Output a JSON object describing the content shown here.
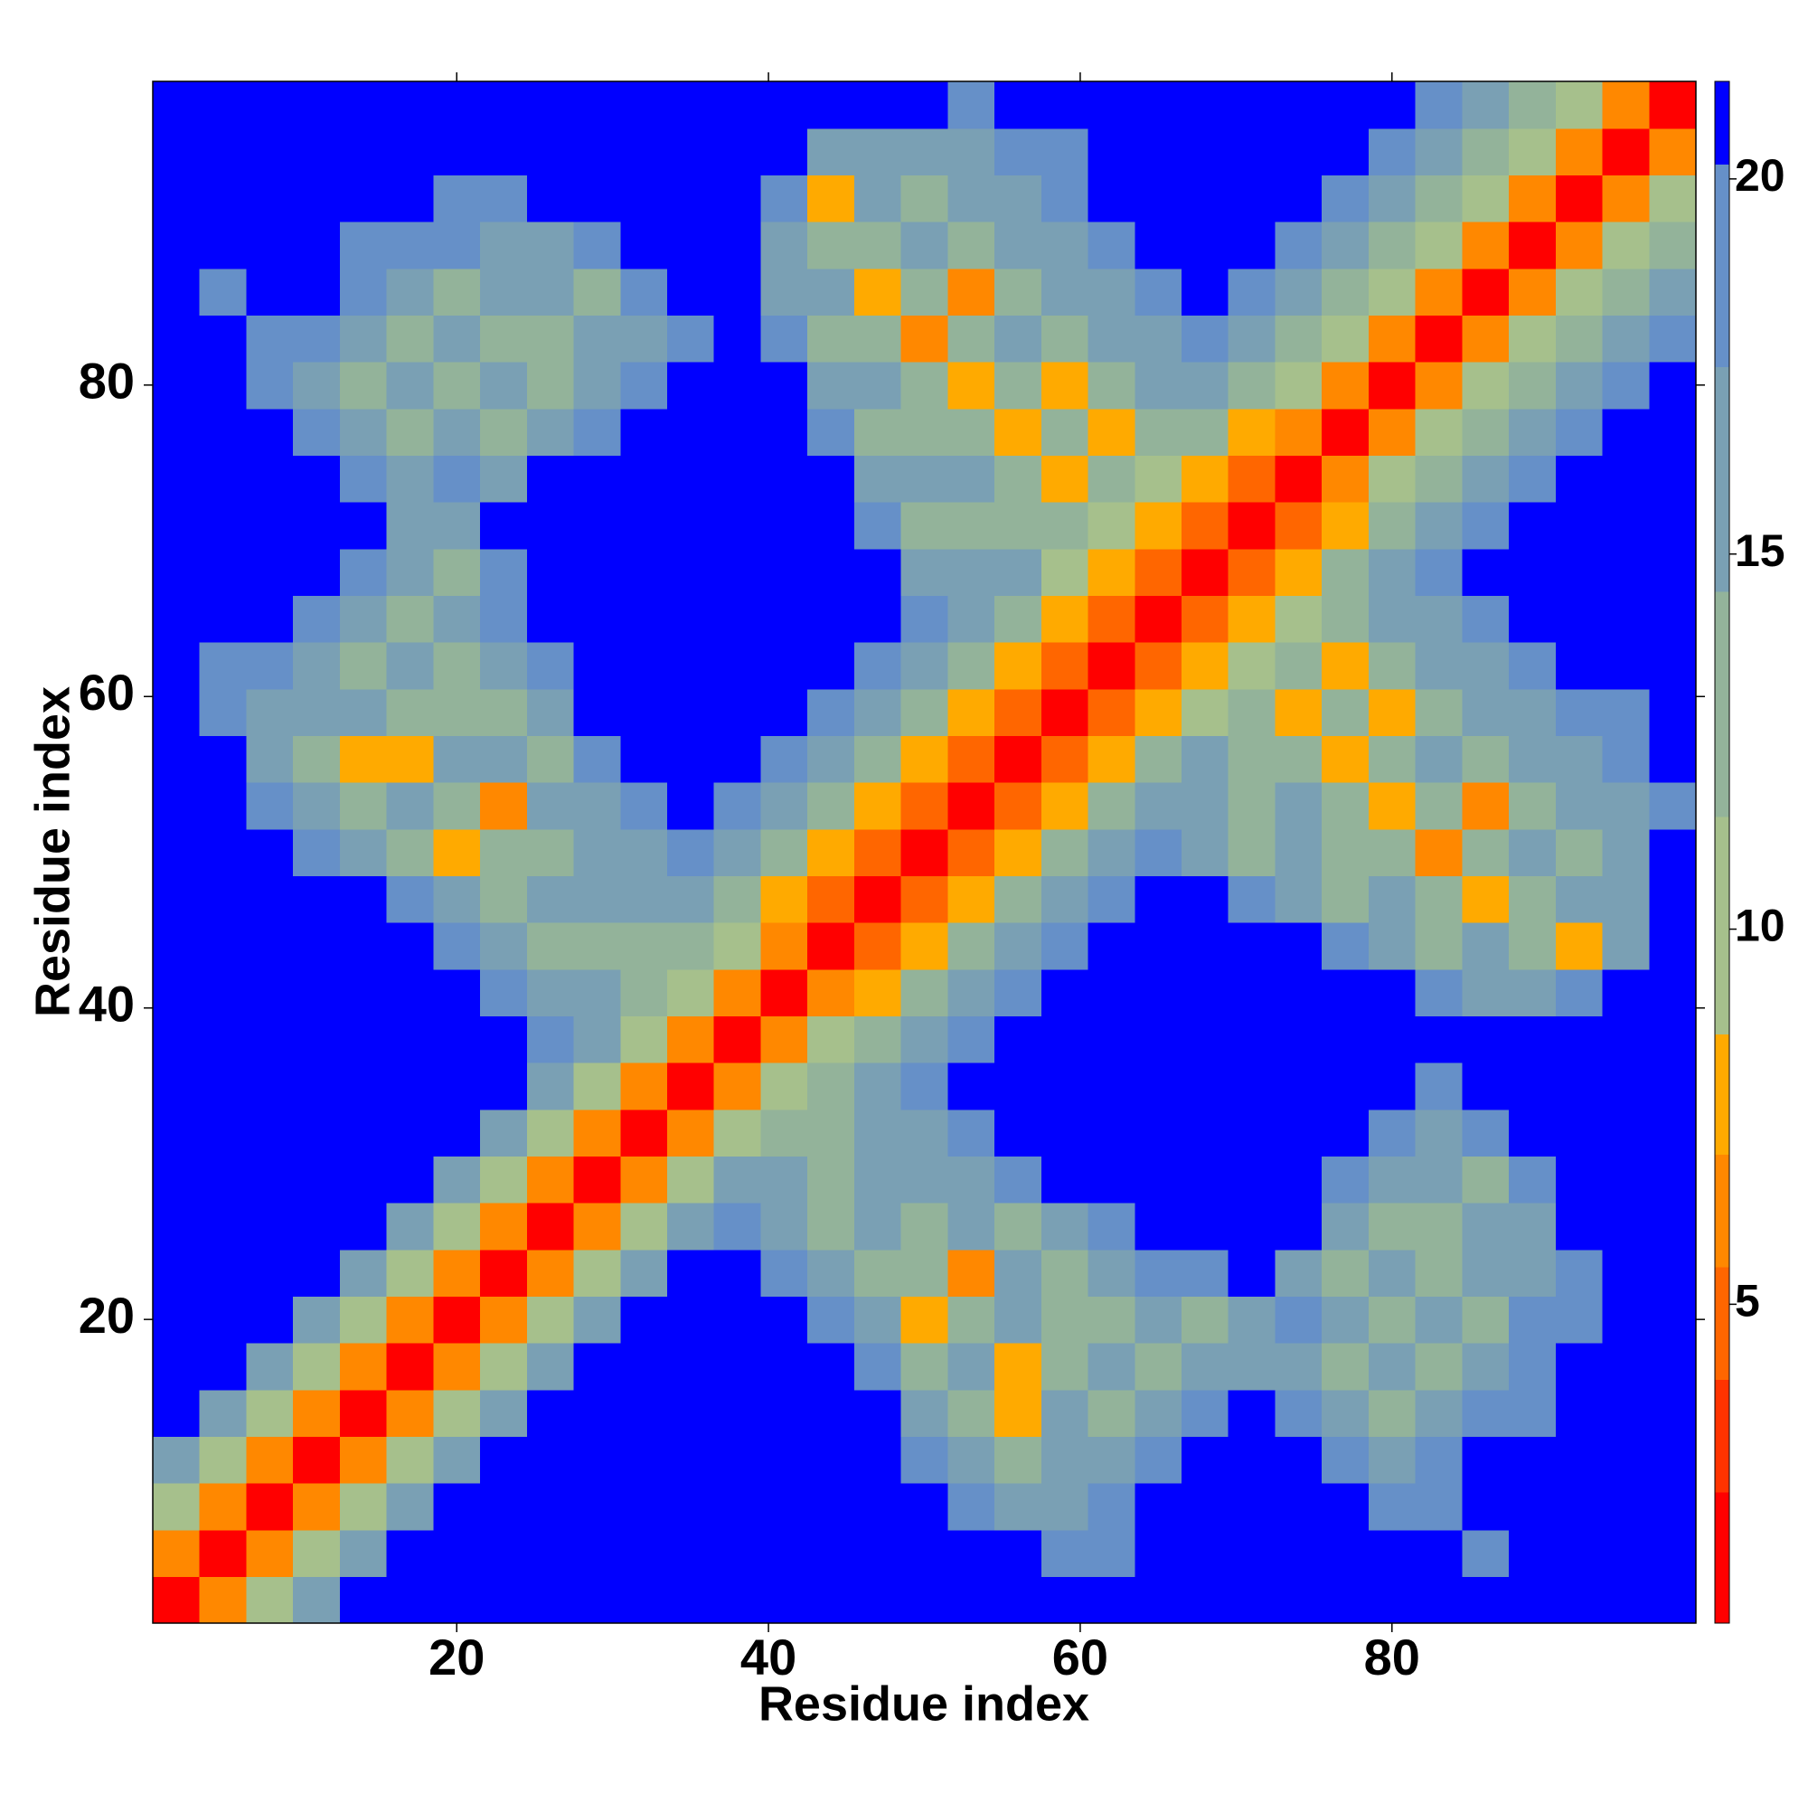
{
  "chart_data": {
    "type": "heatmap",
    "xlabel": "Residue index",
    "ylabel": "Residue index",
    "x": [
      2,
      5,
      8,
      11,
      14,
      17,
      20,
      23,
      26,
      29,
      32,
      35,
      38,
      41,
      44,
      47,
      50,
      53,
      56,
      59,
      62,
      65,
      68,
      71,
      74,
      77,
      80,
      83,
      86,
      89,
      92,
      95,
      98
    ],
    "y": [
      2,
      5,
      8,
      11,
      14,
      17,
      20,
      23,
      26,
      29,
      32,
      35,
      38,
      41,
      44,
      47,
      50,
      53,
      56,
      59,
      62,
      65,
      68,
      71,
      74,
      77,
      80,
      83,
      86,
      89,
      92,
      95,
      98
    ],
    "xlim": [
      0.5,
      99.5
    ],
    "ylim": [
      0.5,
      99.5
    ],
    "xticks": [
      20,
      40,
      60,
      80
    ],
    "yticks": [
      20,
      40,
      60,
      80
    ],
    "zlim": [
      0.75,
      21.3
    ],
    "zticks": [
      5,
      10,
      15,
      20
    ],
    "color_stops": [
      2.5,
      4,
      5.5,
      7,
      8.6,
      11.5,
      14.5,
      17.5,
      20.2
    ],
    "colors": [
      "#ff0000",
      "#ff3300",
      "#ff6600",
      "#ff8800",
      "#ffaa00",
      "#a6c08c",
      "#93b39a",
      "#7aa0b4",
      "#6690c8",
      "#0000ff"
    ],
    "z": [
      [
        2,
        6,
        10,
        15,
        21,
        21,
        21,
        21,
        21,
        21,
        21,
        21,
        21,
        21,
        21,
        21,
        21,
        21,
        21,
        21,
        21,
        21,
        21,
        21,
        21,
        21,
        21,
        21,
        21,
        21,
        21,
        21,
        21
      ],
      [
        6,
        2,
        6,
        10,
        15,
        21,
        21,
        21,
        21,
        21,
        21,
        21,
        21,
        21,
        21,
        21,
        21,
        21,
        21,
        18,
        18,
        21,
        21,
        21,
        21,
        21,
        21,
        21,
        18,
        21,
        21,
        21,
        21
      ],
      [
        10,
        6,
        2,
        6,
        10,
        15,
        21,
        21,
        21,
        21,
        21,
        21,
        21,
        21,
        21,
        21,
        21,
        18,
        15,
        15,
        18,
        21,
        21,
        21,
        21,
        21,
        18,
        18,
        21,
        21,
        21,
        21,
        21
      ],
      [
        15,
        10,
        6,
        2,
        6,
        10,
        15,
        21,
        21,
        21,
        21,
        21,
        21,
        21,
        21,
        21,
        18,
        15,
        12,
        15,
        15,
        18,
        21,
        21,
        21,
        18,
        15,
        18,
        21,
        21,
        21,
        21,
        21
      ],
      [
        21,
        15,
        10,
        6,
        2,
        6,
        10,
        15,
        21,
        21,
        21,
        21,
        21,
        21,
        21,
        21,
        15,
        12,
        8,
        15,
        12,
        15,
        18,
        21,
        18,
        15,
        12,
        15,
        18,
        18,
        21,
        21,
        21
      ],
      [
        21,
        21,
        15,
        10,
        6,
        2,
        6,
        10,
        15,
        21,
        21,
        21,
        21,
        21,
        21,
        18,
        12,
        15,
        7,
        12,
        15,
        12,
        15,
        15,
        15,
        12,
        15,
        12,
        15,
        18,
        21,
        21,
        21
      ],
      [
        21,
        21,
        21,
        15,
        10,
        6,
        2,
        6,
        10,
        15,
        21,
        21,
        21,
        21,
        18,
        15,
        8,
        12,
        15,
        12,
        12,
        15,
        12,
        15,
        18,
        15,
        12,
        15,
        12,
        18,
        18,
        21,
        21
      ],
      [
        21,
        21,
        21,
        21,
        15,
        10,
        6,
        2,
        6,
        10,
        15,
        21,
        21,
        18,
        15,
        12,
        12,
        6,
        15,
        12,
        15,
        18,
        18,
        21,
        15,
        12,
        15,
        12,
        15,
        15,
        18,
        21,
        21
      ],
      [
        21,
        21,
        21,
        21,
        21,
        15,
        10,
        6,
        2,
        6,
        10,
        15,
        18,
        15,
        12,
        15,
        12,
        15,
        12,
        15,
        18,
        21,
        21,
        21,
        21,
        15,
        12,
        12,
        15,
        15,
        21,
        21,
        21
      ],
      [
        21,
        21,
        21,
        21,
        21,
        21,
        15,
        10,
        6,
        2,
        6,
        10,
        15,
        15,
        12,
        15,
        15,
        15,
        18,
        21,
        21,
        21,
        21,
        21,
        21,
        18,
        15,
        15,
        12,
        18,
        21,
        21,
        21
      ],
      [
        21,
        21,
        21,
        21,
        21,
        21,
        21,
        15,
        10,
        6,
        2,
        6,
        10,
        12,
        12,
        15,
        15,
        18,
        21,
        21,
        21,
        21,
        21,
        21,
        21,
        21,
        18,
        15,
        18,
        21,
        21,
        21,
        21
      ],
      [
        21,
        21,
        21,
        21,
        21,
        21,
        21,
        21,
        15,
        10,
        6,
        2,
        6,
        10,
        12,
        15,
        18,
        21,
        21,
        21,
        21,
        21,
        21,
        21,
        21,
        21,
        21,
        18,
        21,
        21,
        21,
        21,
        21
      ],
      [
        21,
        21,
        21,
        21,
        21,
        21,
        21,
        21,
        18,
        15,
        10,
        6,
        2,
        6,
        10,
        12,
        15,
        18,
        21,
        21,
        21,
        21,
        21,
        21,
        21,
        21,
        21,
        21,
        21,
        21,
        21,
        21,
        21
      ],
      [
        21,
        21,
        21,
        21,
        21,
        21,
        21,
        18,
        15,
        15,
        12,
        10,
        6,
        2,
        6,
        8,
        12,
        15,
        18,
        21,
        21,
        21,
        21,
        21,
        21,
        21,
        21,
        18,
        15,
        15,
        18,
        21,
        21
      ],
      [
        21,
        21,
        21,
        21,
        21,
        21,
        18,
        15,
        12,
        12,
        12,
        12,
        10,
        6,
        2,
        5,
        8,
        12,
        15,
        18,
        21,
        21,
        21,
        21,
        21,
        18,
        15,
        12,
        15,
        12,
        8,
        15,
        21
      ],
      [
        21,
        21,
        21,
        21,
        21,
        18,
        15,
        12,
        15,
        15,
        15,
        15,
        12,
        8,
        5,
        2,
        5,
        8,
        12,
        15,
        18,
        21,
        21,
        18,
        15,
        12,
        15,
        12,
        8,
        12,
        15,
        15,
        21
      ],
      [
        21,
        21,
        21,
        18,
        15,
        12,
        8,
        12,
        12,
        15,
        15,
        18,
        15,
        12,
        8,
        5,
        2,
        5,
        8,
        12,
        15,
        18,
        15,
        12,
        15,
        12,
        12,
        6,
        12,
        15,
        12,
        15,
        21
      ],
      [
        21,
        21,
        18,
        15,
        12,
        15,
        12,
        6,
        15,
        15,
        18,
        21,
        18,
        15,
        12,
        8,
        5,
        2,
        5,
        8,
        12,
        15,
        15,
        12,
        15,
        12,
        8,
        12,
        6,
        12,
        15,
        15,
        18
      ],
      [
        21,
        21,
        15,
        12,
        8,
        7,
        15,
        15,
        12,
        18,
        21,
        21,
        21,
        18,
        15,
        12,
        8,
        5,
        2,
        5,
        7,
        12,
        15,
        12,
        12,
        7,
        12,
        15,
        12,
        15,
        15,
        18,
        21
      ],
      [
        21,
        18,
        15,
        15,
        15,
        12,
        12,
        12,
        15,
        21,
        21,
        21,
        21,
        21,
        18,
        15,
        12,
        8,
        5,
        2,
        5,
        7,
        10,
        12,
        8,
        12,
        7,
        12,
        15,
        15,
        18,
        18,
        21
      ],
      [
        21,
        18,
        18,
        15,
        12,
        15,
        12,
        15,
        18,
        21,
        21,
        21,
        21,
        21,
        21,
        18,
        15,
        12,
        7,
        5,
        2,
        5,
        7,
        10,
        12,
        7,
        12,
        15,
        15,
        18,
        21,
        21,
        21
      ],
      [
        21,
        21,
        21,
        18,
        15,
        12,
        15,
        18,
        21,
        21,
        21,
        21,
        21,
        21,
        21,
        21,
        18,
        15,
        12,
        7,
        5,
        2,
        5,
        7,
        10,
        12,
        15,
        15,
        18,
        21,
        21,
        21,
        21
      ],
      [
        21,
        21,
        21,
        21,
        18,
        15,
        12,
        18,
        21,
        21,
        21,
        21,
        21,
        21,
        21,
        21,
        15,
        15,
        15,
        10,
        7,
        5,
        2,
        5,
        7,
        12,
        15,
        18,
        21,
        21,
        21,
        21,
        21
      ],
      [
        21,
        21,
        21,
        21,
        21,
        15,
        15,
        21,
        21,
        21,
        21,
        21,
        21,
        21,
        21,
        18,
        12,
        12,
        12,
        12,
        10,
        7,
        5,
        2,
        5,
        8,
        12,
        15,
        18,
        21,
        21,
        21,
        21
      ],
      [
        21,
        21,
        21,
        21,
        18,
        15,
        18,
        15,
        21,
        21,
        21,
        21,
        21,
        21,
        21,
        15,
        15,
        15,
        12,
        8,
        12,
        10,
        7,
        5,
        2,
        6,
        10,
        12,
        15,
        18,
        21,
        21,
        21
      ],
      [
        21,
        21,
        21,
        18,
        15,
        12,
        15,
        12,
        15,
        18,
        21,
        21,
        21,
        21,
        18,
        12,
        12,
        12,
        7,
        12,
        7,
        12,
        12,
        8,
        6,
        2,
        6,
        10,
        12,
        15,
        18,
        21,
        21
      ],
      [
        21,
        21,
        18,
        15,
        12,
        15,
        12,
        15,
        12,
        15,
        18,
        21,
        21,
        21,
        15,
        15,
        12,
        8,
        12,
        7,
        12,
        15,
        15,
        12,
        10,
        6,
        2,
        6,
        10,
        12,
        15,
        18,
        21
      ],
      [
        21,
        21,
        18,
        18,
        15,
        12,
        15,
        12,
        12,
        15,
        15,
        18,
        21,
        18,
        12,
        12,
        6,
        12,
        15,
        12,
        15,
        15,
        18,
        15,
        12,
        10,
        6,
        2,
        6,
        10,
        12,
        15,
        18
      ],
      [
        21,
        18,
        21,
        21,
        18,
        15,
        12,
        15,
        15,
        12,
        18,
        21,
        21,
        15,
        15,
        8,
        12,
        6,
        12,
        15,
        15,
        18,
        21,
        18,
        15,
        12,
        10,
        6,
        2,
        6,
        10,
        12,
        15
      ],
      [
        21,
        21,
        21,
        21,
        18,
        18,
        18,
        15,
        15,
        18,
        21,
        21,
        21,
        15,
        12,
        12,
        15,
        12,
        15,
        15,
        18,
        21,
        21,
        21,
        18,
        15,
        12,
        10,
        6,
        2,
        6,
        10,
        12
      ],
      [
        21,
        21,
        21,
        21,
        21,
        21,
        18,
        18,
        21,
        21,
        21,
        21,
        21,
        18,
        8,
        15,
        12,
        15,
        15,
        18,
        21,
        21,
        21,
        21,
        21,
        18,
        15,
        12,
        10,
        6,
        2,
        6,
        10
      ],
      [
        21,
        21,
        21,
        21,
        21,
        21,
        21,
        21,
        21,
        21,
        21,
        21,
        21,
        21,
        15,
        15,
        15,
        15,
        18,
        18,
        21,
        21,
        21,
        21,
        21,
        21,
        18,
        15,
        12,
        10,
        6,
        2,
        6
      ],
      [
        21,
        21,
        21,
        21,
        21,
        21,
        21,
        21,
        21,
        21,
        21,
        21,
        21,
        21,
        21,
        21,
        21,
        18,
        21,
        21,
        21,
        21,
        21,
        21,
        21,
        21,
        21,
        18,
        15,
        12,
        10,
        6,
        2
      ]
    ]
  }
}
